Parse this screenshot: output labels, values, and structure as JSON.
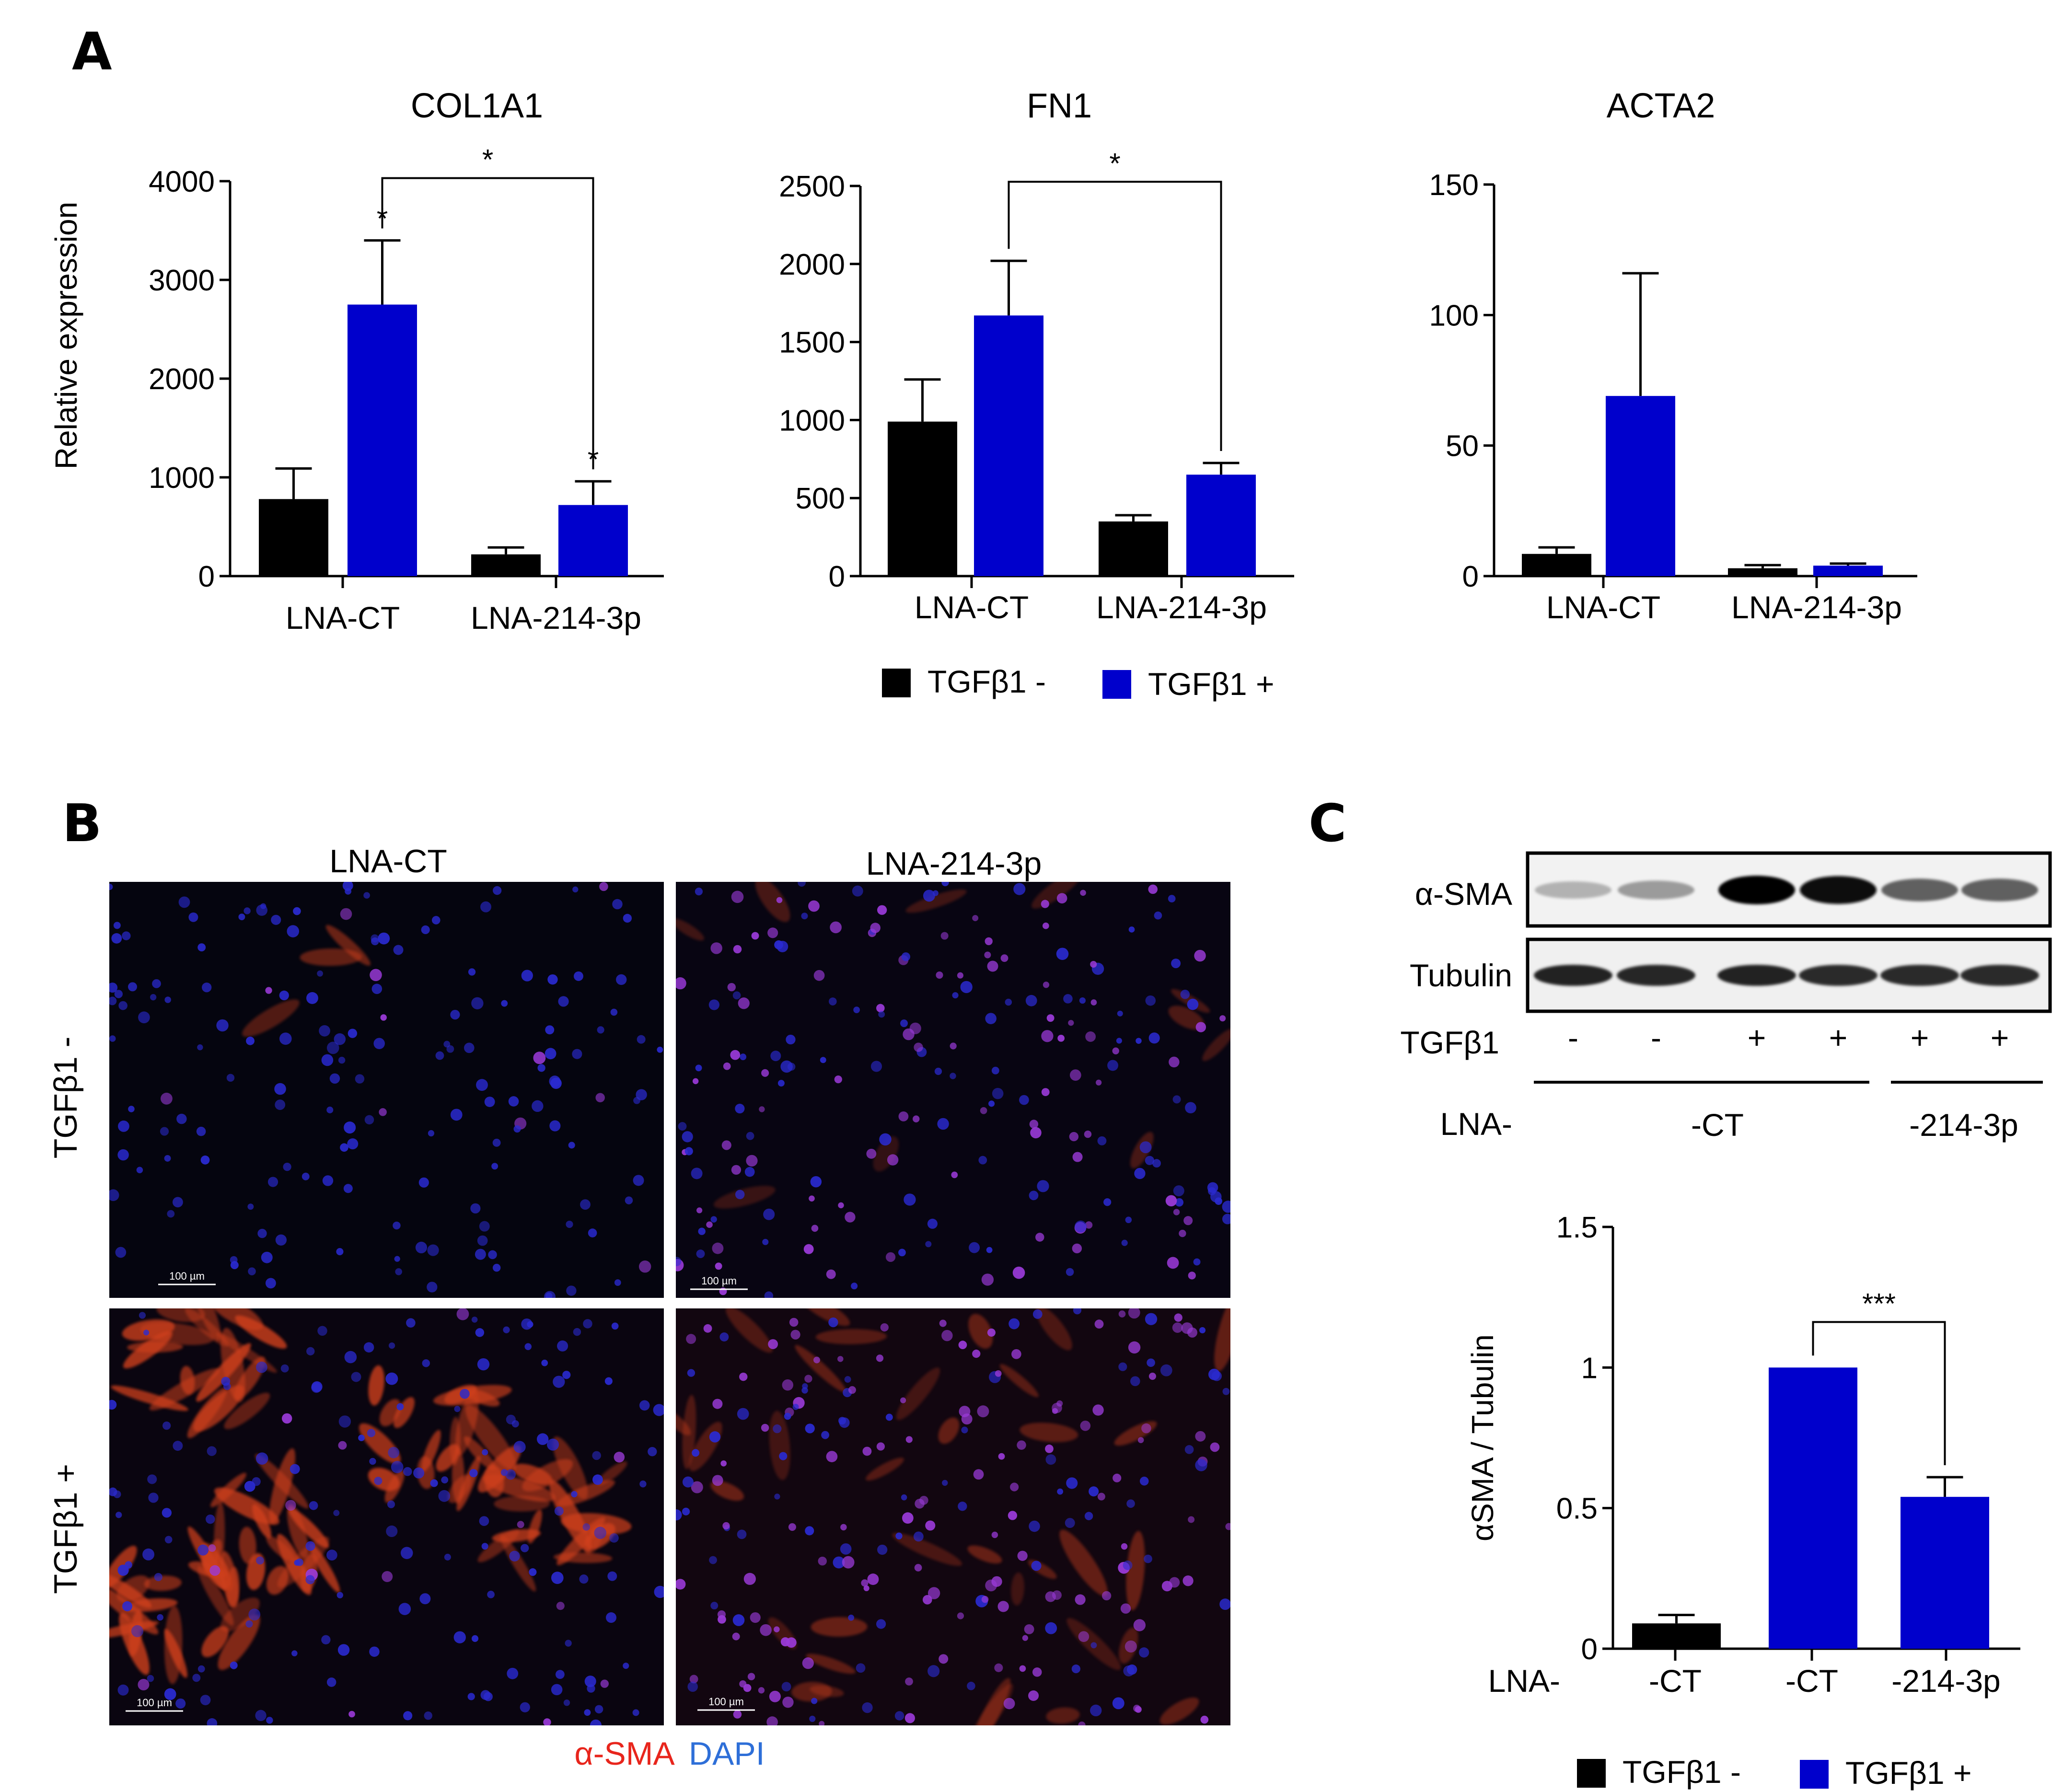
{
  "panels": {
    "a": "A",
    "b": "B",
    "c": "C"
  },
  "colors": {
    "tgf_minus": "#000000",
    "tgf_plus": "#0000CC",
    "alpha_sma": "#E8251C",
    "dapi": "#2E6FD8"
  },
  "legend": {
    "minus_label": "TGFβ1 -",
    "plus_label": "TGFβ1 +"
  },
  "microscopy": {
    "col_labels": [
      "LNA-CT",
      "LNA-214-3p"
    ],
    "row_labels": [
      "TGFβ1 -",
      "TGFβ1 +"
    ],
    "scale_bar": "100 µm",
    "caption_red": "α-SMA",
    "caption_blue": "DAPI"
  },
  "blot": {
    "band_labels": [
      "α-SMA",
      "Tubulin"
    ],
    "tgf_row_label": "TGFβ1",
    "tgf_marks": [
      "-",
      "-",
      "+",
      "+",
      "+",
      "+"
    ],
    "lna_row_label": "LNA-",
    "lna_groups": [
      "-CT",
      "-214-3p"
    ],
    "band_intensity": {
      "alpha_sma": [
        0.25,
        0.35,
        1.0,
        0.95,
        0.6,
        0.6
      ],
      "tubulin": [
        0.9,
        0.88,
        0.9,
        0.85,
        0.85,
        0.85
      ]
    }
  },
  "chart_data": [
    {
      "type": "bar",
      "title": "COL1A1",
      "ylabel": "Relative expression",
      "categories": [
        "LNA-CT",
        "LNA-214-3p"
      ],
      "ylim": [
        0,
        4000
      ],
      "yticks": [
        0,
        1000,
        2000,
        3000,
        4000
      ],
      "series": [
        {
          "name": "TGFβ1 -",
          "values": [
            780,
            220
          ],
          "errors": [
            310,
            70
          ]
        },
        {
          "name": "TGFβ1 +",
          "values": [
            2750,
            720
          ],
          "errors": [
            650,
            240
          ]
        }
      ],
      "annotations": [
        {
          "text": "*",
          "bracket": [
            "LNA-CT/TGFβ1 +",
            "LNA-214-3p/TGFβ1 +"
          ]
        },
        {
          "text": "*",
          "over": "LNA-CT/TGFβ1 +"
        },
        {
          "text": "*",
          "over": "LNA-214-3p/TGFβ1 +"
        }
      ]
    },
    {
      "type": "bar",
      "title": "FN1",
      "categories": [
        "LNA-CT",
        "LNA-214-3p"
      ],
      "ylim": [
        0,
        2500
      ],
      "yticks": [
        0,
        500,
        1000,
        1500,
        2000,
        2500
      ],
      "series": [
        {
          "name": "TGFβ1 -",
          "values": [
            990,
            350
          ],
          "errors": [
            270,
            40
          ]
        },
        {
          "name": "TGFβ1 +",
          "values": [
            1670,
            650
          ],
          "errors": [
            350,
            75
          ]
        }
      ],
      "annotations": [
        {
          "text": "*",
          "bracket": [
            "LNA-CT/TGFβ1 +",
            "LNA-214-3p/TGFβ1 +"
          ]
        }
      ]
    },
    {
      "type": "bar",
      "title": "ACTA2",
      "categories": [
        "LNA-CT",
        "LNA-214-3p"
      ],
      "ylim": [
        0,
        150
      ],
      "yticks": [
        0,
        50,
        100,
        150
      ],
      "series": [
        {
          "name": "TGFβ1 -",
          "values": [
            8.5,
            3
          ],
          "errors": [
            2.5,
            1.2
          ]
        },
        {
          "name": "TGFβ1 +",
          "values": [
            69,
            4
          ],
          "errors": [
            47,
            0.8
          ]
        }
      ]
    },
    {
      "type": "bar",
      "ylabel": "αSMA / Tubulin",
      "xlabel_prefix": "LNA-",
      "categories": [
        "-CT",
        "-CT",
        "-214-3p"
      ],
      "ylim": [
        0,
        1.5
      ],
      "yticks": [
        0,
        0.5,
        1,
        1.5
      ],
      "ytick_labels": [
        "0",
        "0.5",
        "1",
        "1.5"
      ],
      "groups": [
        "TGFβ1 -",
        "TGFβ1 +",
        "TGFβ1 +"
      ],
      "values": [
        0.09,
        1.0,
        0.54
      ],
      "errors": [
        0.03,
        0.0,
        0.07
      ],
      "annotations": [
        {
          "text": "***",
          "bracket": [
            "-CT/TGFβ1 +",
            "-214-3p/TGFβ1 +"
          ]
        }
      ]
    }
  ]
}
